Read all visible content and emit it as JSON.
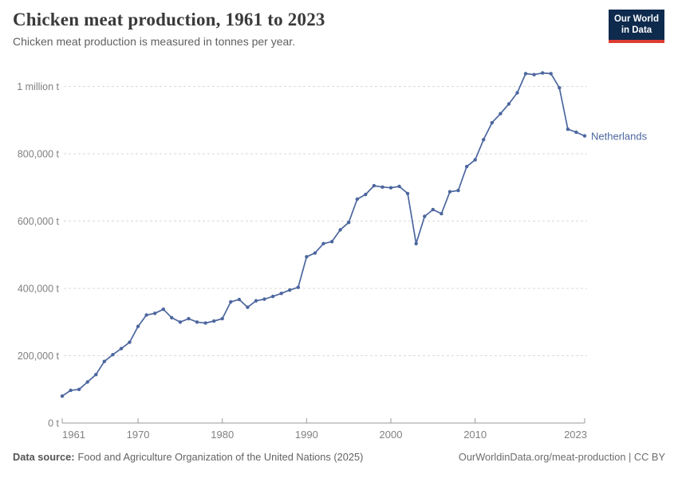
{
  "header": {
    "title": "Chicken meat production, 1961 to 2023",
    "subtitle": "Chicken meat production is measured in tonnes per year.",
    "logo": {
      "line1": "Our World",
      "line2": "in Data"
    }
  },
  "chart_data": {
    "type": "line",
    "title": "Chicken meat production, 1961 to 2023",
    "unit": "tonnes per year",
    "grid": true,
    "legend_position": "end-of-line",
    "ylim": [
      0,
      1000000
    ],
    "xlim": [
      1961,
      2023
    ],
    "x": [
      1961,
      1962,
      1963,
      1964,
      1965,
      1966,
      1967,
      1968,
      1969,
      1970,
      1971,
      1972,
      1973,
      1974,
      1975,
      1976,
      1977,
      1978,
      1979,
      1980,
      1981,
      1982,
      1983,
      1984,
      1985,
      1986,
      1987,
      1988,
      1989,
      1990,
      1991,
      1992,
      1993,
      1994,
      1995,
      1996,
      1997,
      1998,
      1999,
      2000,
      2001,
      2002,
      2003,
      2004,
      2005,
      2006,
      2007,
      2008,
      2009,
      2010,
      2011,
      2012,
      2013,
      2014,
      2015,
      2016,
      2017,
      2018,
      2019,
      2020,
      2021,
      2022,
      2023
    ],
    "series": [
      {
        "name": "Netherlands",
        "color": "#4c669e",
        "values": [
          80000,
          97000,
          100000,
          122000,
          144000,
          183000,
          203000,
          221000,
          240000,
          287000,
          321000,
          326000,
          338000,
          313000,
          300000,
          310000,
          300000,
          297000,
          303000,
          310000,
          360000,
          367000,
          344000,
          363000,
          368000,
          376000,
          385000,
          395000,
          403000,
          494000,
          505000,
          533000,
          539000,
          574000,
          596000,
          665000,
          679000,
          705000,
          701000,
          699000,
          703000,
          682000,
          533000,
          614000,
          634000,
          622000,
          687000,
          691000,
          762000,
          782000,
          842000,
          892000,
          919000,
          948000,
          981000,
          1038000,
          1035000,
          1040000,
          1038000,
          996000,
          873000,
          864000,
          853000
        ]
      }
    ],
    "y_ticks": [
      {
        "value": 0,
        "label": "0 t"
      },
      {
        "value": 200000,
        "label": "200,000 t"
      },
      {
        "value": 400000,
        "label": "400,000 t"
      },
      {
        "value": 600000,
        "label": "600,000 t"
      },
      {
        "value": 800000,
        "label": "800,000 t"
      },
      {
        "value": 1000000,
        "label": "1 million t"
      }
    ],
    "x_ticks": [
      {
        "value": 1961,
        "label": "1961",
        "align": "start"
      },
      {
        "value": 1970,
        "label": "1970",
        "align": "middle"
      },
      {
        "value": 1980,
        "label": "1980",
        "align": "middle"
      },
      {
        "value": 1990,
        "label": "1990",
        "align": "middle"
      },
      {
        "value": 2000,
        "label": "2000",
        "align": "middle"
      },
      {
        "value": 2010,
        "label": "2010",
        "align": "middle"
      },
      {
        "value": 2023,
        "label": "2023",
        "align": "end"
      }
    ],
    "colors": {
      "line": "#4c669e",
      "gridline": "#dadada",
      "axis": "#9a9a9a",
      "tick_label": "#808080"
    }
  },
  "footer": {
    "source_label": "Data source:",
    "source_text": "Food and Agriculture Organization of the United Nations (2025)",
    "link_text": "OurWorldinData.org/meat-production | CC BY"
  }
}
